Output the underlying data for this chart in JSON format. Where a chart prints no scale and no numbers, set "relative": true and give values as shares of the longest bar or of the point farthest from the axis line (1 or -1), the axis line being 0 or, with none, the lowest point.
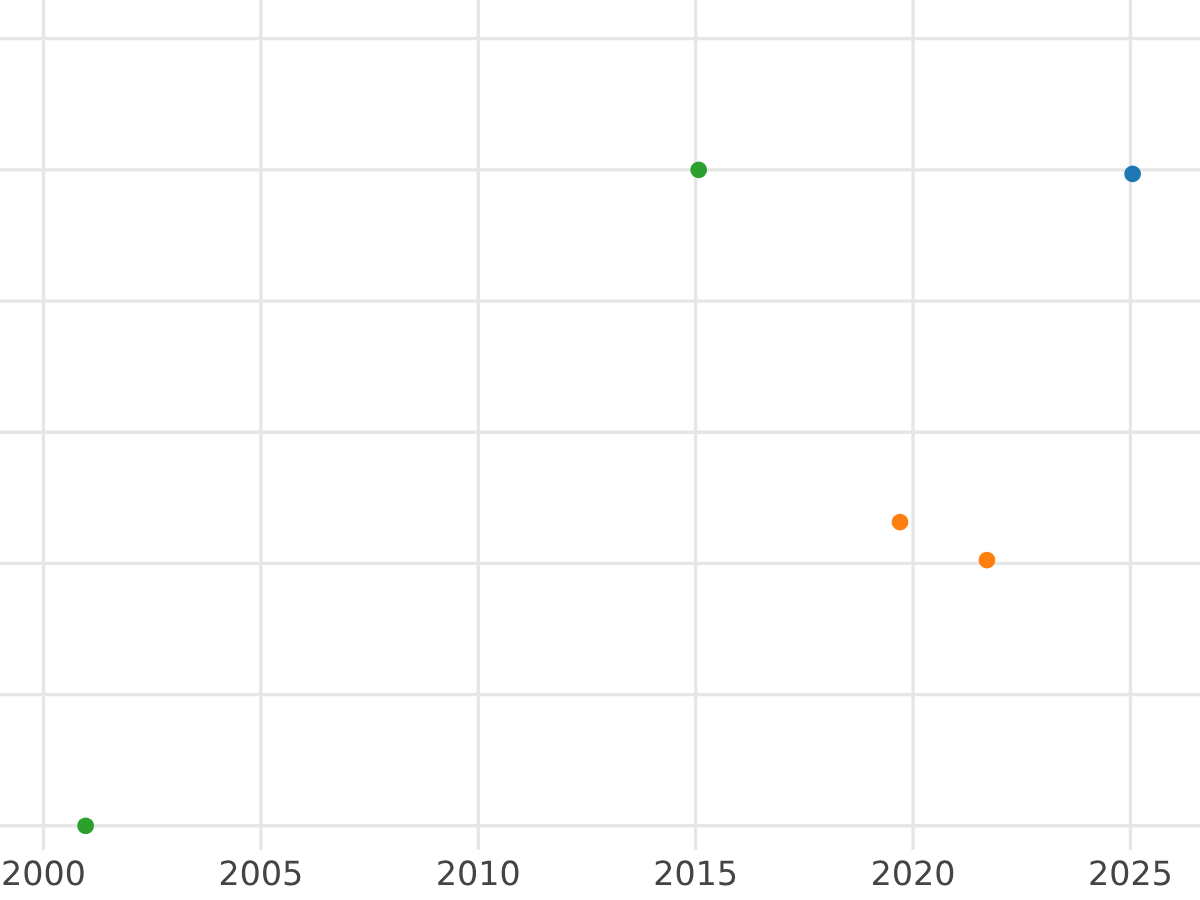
{
  "chart_data": {
    "type": "scatter",
    "relative": true,
    "grid": true,
    "marker": "circle",
    "tick_labels": "x",
    "xlim": [
      1999,
      2026.6
    ],
    "xticks": [
      2000,
      2005,
      2010,
      2015,
      2020,
      2025
    ],
    "series": [
      {
        "color": "#1f77b4",
        "x": [
          2025.05
        ],
        "values": [
          0.994
        ]
      },
      {
        "color": "#ff7f0e",
        "x": [
          2019.7,
          2021.7
        ],
        "values": [
          0.463,
          0.405
        ]
      },
      {
        "color": "#2ca02c",
        "x": [
          2000.97,
          2015.07
        ],
        "values": [
          0,
          1
        ]
      }
    ]
  }
}
